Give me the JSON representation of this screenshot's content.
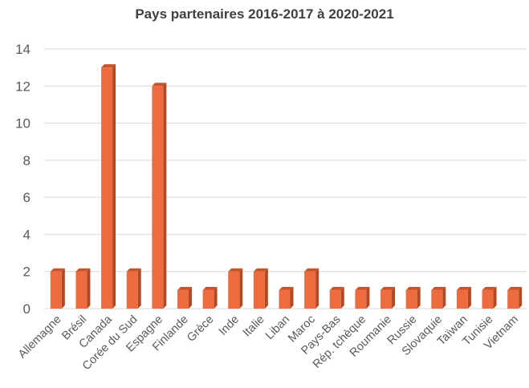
{
  "chart_data": {
    "type": "bar",
    "title": "Pays partenaires 2016-2017 à 2020-2021",
    "xlabel": "",
    "ylabel": "",
    "categories": [
      "Allemagne",
      "Brésil",
      "Canada",
      "Corée du Sud",
      "Espagne",
      "Finlande",
      "Grèce",
      "Inde",
      "Italie",
      "Liban",
      "Maroc",
      "Pays-Bas",
      "Rép. tchèque",
      "Roumanie",
      "Russie",
      "Slovaquie",
      "Taïwan",
      "Tunisie",
      "Vietnam"
    ],
    "values": [
      2,
      2,
      13,
      2,
      12,
      1,
      1,
      2,
      2,
      1,
      2,
      1,
      1,
      1,
      1,
      1,
      1,
      1,
      1
    ],
    "ylim": [
      0,
      14
    ],
    "yticks": [
      0,
      2,
      4,
      6,
      8,
      10,
      12,
      14
    ],
    "grid": true,
    "legend": "none",
    "colors": {
      "bar_front": "#ed6c3f",
      "bar_side": "#b04a24",
      "bar_top": "#c4552e",
      "grid": "#d9d9d9",
      "text": "#595959"
    }
  }
}
